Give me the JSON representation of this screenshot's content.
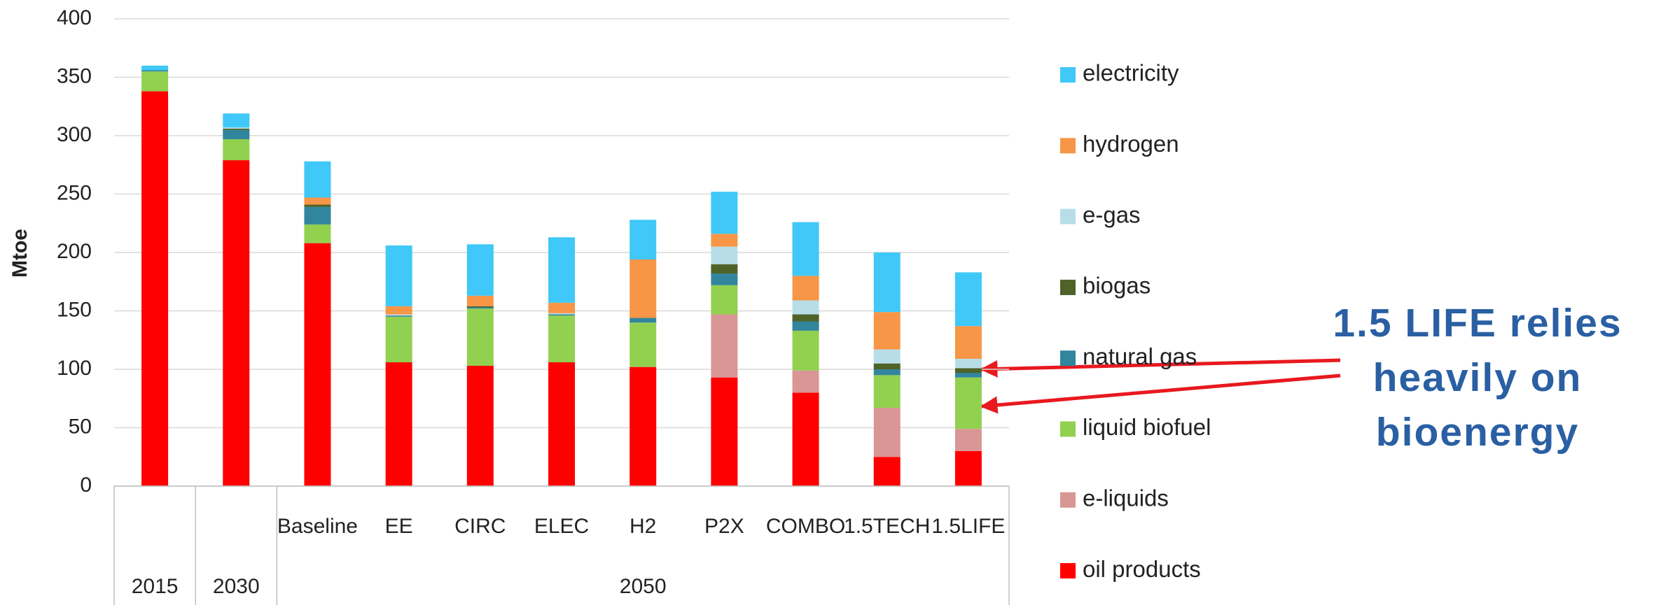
{
  "chart_data": {
    "type": "stacked_bar",
    "y_label": "Mtoe",
    "categories": [
      null,
      null,
      "Baseline",
      "EE",
      "CIRC",
      "ELEC",
      "H2",
      "P2X",
      "COMBO",
      "1.5TECH",
      "1.5LIFE"
    ],
    "groups": [
      "2015",
      "2030",
      "2050",
      "2050",
      "2050",
      "2050",
      "2050",
      "2050",
      "2050",
      "2050",
      "2050"
    ],
    "series": [
      {
        "name": "oil products",
        "color": "#ff0000",
        "values": [
          338,
          279,
          208,
          106,
          103,
          106,
          102,
          93,
          80,
          25,
          30
        ]
      },
      {
        "name": "e-liquids",
        "color": "#d99694",
        "values": [
          0,
          0,
          0,
          0,
          0,
          0,
          0,
          54,
          19,
          42,
          19
        ]
      },
      {
        "name": "liquid biofuel",
        "color": "#92d050",
        "values": [
          17,
          18,
          16,
          39,
          49,
          40,
          38,
          25,
          34,
          28,
          44
        ]
      },
      {
        "name": "natural gas",
        "color": "#31859c",
        "values": [
          1,
          8,
          15,
          1,
          1,
          1,
          4,
          10,
          8,
          5,
          4
        ]
      },
      {
        "name": "biogas",
        "color": "#4f6228",
        "values": [
          0,
          1,
          2,
          0,
          1,
          0,
          0,
          8,
          6,
          5,
          4
        ]
      },
      {
        "name": "e-gas",
        "color": "#b7dee8",
        "values": [
          0,
          1,
          0,
          1,
          0,
          1,
          0,
          15,
          12,
          12,
          8
        ]
      },
      {
        "name": "hydrogen",
        "color": "#f79646",
        "values": [
          0,
          0,
          6,
          7,
          9,
          9,
          50,
          11,
          21,
          32,
          28
        ]
      },
      {
        "name": "electricity",
        "color": "#3fc8f8",
        "values": [
          4,
          12,
          31,
          52,
          44,
          56,
          34,
          36,
          46,
          51,
          46
        ]
      }
    ],
    "ylim": [
      0,
      400
    ],
    "yticks": [
      0,
      50,
      100,
      150,
      200,
      250,
      300,
      350,
      400
    ],
    "grid": true,
    "legend": "right",
    "annotation": [
      "1.5 LIFE relies",
      "heavily on",
      "bioenergy"
    ]
  }
}
